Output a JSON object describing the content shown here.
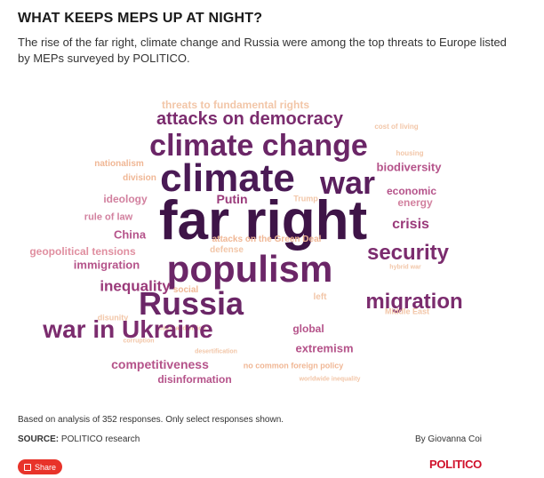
{
  "header": {
    "title": "WHAT KEEPS MEPS UP AT NIGHT?",
    "subtitle": "The rise of the far right, climate change and Russia were among the top threats to Europe listed by MEPs surveyed by POLITICO."
  },
  "cloud": [
    {
      "text": "threats to fundamental rights",
      "color": "#f2c6a8",
      "size": 12
    },
    {
      "text": "attacks on democracy",
      "color": "#7b2c6e",
      "size": 20
    },
    {
      "text": "cost of living",
      "color": "#f2c6a8",
      "size": 8
    },
    {
      "text": "climate change",
      "color": "#6b2667",
      "size": 34
    },
    {
      "text": "housing",
      "color": "#f2c6a8",
      "size": 8
    },
    {
      "text": "nationalism",
      "color": "#f0b795",
      "size": 10
    },
    {
      "text": "climate",
      "color": "#4a1a55",
      "size": 44
    },
    {
      "text": "war",
      "color": "#5b1f5e",
      "size": 36
    },
    {
      "text": "biodiversity",
      "color": "#b5538a",
      "size": 13
    },
    {
      "text": "division",
      "color": "#f0b795",
      "size": 10
    },
    {
      "text": "economic",
      "color": "#b5538a",
      "size": 12
    },
    {
      "text": "ideology",
      "color": "#d2819f",
      "size": 12
    },
    {
      "text": "Putin",
      "color": "#9a3a7a",
      "size": 14
    },
    {
      "text": "Trump",
      "color": "#f2c6a8",
      "size": 9
    },
    {
      "text": "energy",
      "color": "#d2819f",
      "size": 12
    },
    {
      "text": "far right",
      "color": "#3e1447",
      "size": 62
    },
    {
      "text": "rule of law",
      "color": "#d2819f",
      "size": 11
    },
    {
      "text": "crisis",
      "color": "#9a3a7a",
      "size": 16
    },
    {
      "text": "China",
      "color": "#b5538a",
      "size": 13
    },
    {
      "text": "geopolitical tensions",
      "color": "#e08fa0",
      "size": 12
    },
    {
      "text": "defense",
      "color": "#f2c6a8",
      "size": 10
    },
    {
      "text": "security",
      "color": "#7b2c6e",
      "size": 24
    },
    {
      "text": "immigration",
      "color": "#b5538a",
      "size": 13
    },
    {
      "text": "populism",
      "color": "#6b2667",
      "size": 42
    },
    {
      "text": "hybrid war",
      "color": "#f2c6a8",
      "size": 7
    },
    {
      "text": "inequality",
      "color": "#9a3a7a",
      "size": 17
    },
    {
      "text": "social",
      "color": "#f0b795",
      "size": 10
    },
    {
      "text": "left",
      "color": "#f2c6a8",
      "size": 10
    },
    {
      "text": "Russia",
      "color": "#6b2667",
      "size": 36
    },
    {
      "text": "migration",
      "color": "#7b2c6e",
      "size": 24
    },
    {
      "text": "Middle East",
      "color": "#f2c6a8",
      "size": 9
    },
    {
      "text": "disunity",
      "color": "#f2c6a8",
      "size": 9
    },
    {
      "text": "internal division",
      "color": "#f2c6a8",
      "size": 7
    },
    {
      "text": "global",
      "color": "#b5538a",
      "size": 12
    },
    {
      "text": "war in Ukraine",
      "color": "#7b2c6e",
      "size": 28
    },
    {
      "text": "corruption",
      "color": "#f2c6a8",
      "size": 7
    },
    {
      "text": "desertification",
      "color": "#f2c6a8",
      "size": 7
    },
    {
      "text": "extremism",
      "color": "#b5538a",
      "size": 13
    },
    {
      "text": "competitiveness",
      "color": "#b5538a",
      "size": 14
    },
    {
      "text": "no common foreign policy",
      "color": "#f0b795",
      "size": 9
    },
    {
      "text": "disinformation",
      "color": "#b5538a",
      "size": 12
    },
    {
      "text": "worldwide inequality",
      "color": "#f2c6a8",
      "size": 7
    },
    {
      "text": "attacks on the Green Deal",
      "color": "#f0b795",
      "size": 10
    }
  ],
  "footer": {
    "note": "Based on analysis of 352 responses. Only select responses shown.",
    "source_label": "SOURCE:",
    "source_text": "POLITICO research",
    "byline": "By Giovanna Coi",
    "share_label": "Share",
    "share_icon": "share-icon",
    "logo": "POLITICO"
  },
  "colors": {
    "accent": "#e8332a",
    "brand": "#d0112b"
  }
}
